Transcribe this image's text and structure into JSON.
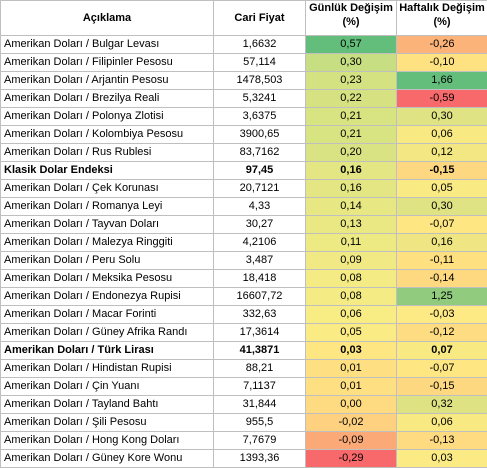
{
  "headers": {
    "description": "Açıklama",
    "price": "Cari Fiyat",
    "daily_line1": "Günlük Değişim",
    "daily_line2": "(%)",
    "weekly_line1": "Haftalık Değişim",
    "weekly_line2": "(%)"
  },
  "rows": [
    {
      "name": "Amerikan Doları / Bulgar Levası",
      "price": "1,6632",
      "daily": "0,57",
      "weekly": "-0,26",
      "daily_color": "#63be7b",
      "weekly_color": "#fcb37a",
      "bold": false
    },
    {
      "name": "Amerikan Doları / Filipinler Pesosu",
      "price": "57,114",
      "daily": "0,30",
      "weekly": "-0,10",
      "daily_color": "#c7de82",
      "weekly_color": "#fee282",
      "bold": false
    },
    {
      "name": "Amerikan Doları / Arjantin Pesosu",
      "price": "1478,503",
      "daily": "0,23",
      "weekly": "1,66",
      "daily_color": "#d4e282",
      "weekly_color": "#63be7b",
      "bold": false
    },
    {
      "name": "Amerikan Doları / Brezilya Reali",
      "price": "5,3241",
      "daily": "0,22",
      "weekly": "-0,59",
      "daily_color": "#d6e282",
      "weekly_color": "#f8696b",
      "bold": false
    },
    {
      "name": "Amerikan Doları / Polonya Zlotisi",
      "price": "3,6375",
      "daily": "0,21",
      "weekly": "0,30",
      "daily_color": "#d8e382",
      "weekly_color": "#e0e383",
      "bold": false
    },
    {
      "name": "Amerikan Doları / Kolombiya Pesosu",
      "price": "3900,65",
      "daily": "0,21",
      "weekly": "0,06",
      "daily_color": "#d8e382",
      "weekly_color": "#f9e983",
      "bold": false
    },
    {
      "name": "Amerikan Doları / Rus Rublesi",
      "price": "83,7162",
      "daily": "0,20",
      "weekly": "0,12",
      "daily_color": "#dae383",
      "weekly_color": "#f3e783",
      "bold": false
    },
    {
      "name": "Klasik Dolar Endeksi",
      "price": "97,45",
      "daily": "0,16",
      "weekly": "-0,15",
      "daily_color": "#e3e683",
      "weekly_color": "#fed880",
      "bold": true
    },
    {
      "name": "Amerikan Doları / Çek Korunası",
      "price": "20,7121",
      "daily": "0,16",
      "weekly": "0,05",
      "daily_color": "#e3e683",
      "weekly_color": "#faea84",
      "bold": false
    },
    {
      "name": "Amerikan Doları / Romanya Leyi",
      "price": "4,33",
      "daily": "0,14",
      "weekly": "0,30",
      "daily_color": "#e7e783",
      "weekly_color": "#e0e383",
      "bold": false
    },
    {
      "name": "Amerikan Doları /  Tayvan Doları",
      "price": "30,27",
      "daily": "0,13",
      "weekly": "-0,07",
      "daily_color": "#e9e883",
      "weekly_color": "#fee683",
      "bold": false
    },
    {
      "name": "Amerikan Doları / Malezya Ringgiti",
      "price": "4,2106",
      "daily": "0,11",
      "weekly": "0,16",
      "daily_color": "#ede983",
      "weekly_color": "#efe683",
      "bold": false
    },
    {
      "name": "Amerikan Doları / Peru Solu",
      "price": "3,487",
      "daily": "0,09",
      "weekly": "-0,11",
      "daily_color": "#f1ea84",
      "weekly_color": "#fee081",
      "bold": false
    },
    {
      "name": "Amerikan Doları / Meksika Pesosu",
      "price": "18,418",
      "daily": "0,08",
      "weekly": "-0,14",
      "daily_color": "#f4eb84",
      "weekly_color": "#fed980",
      "bold": false
    },
    {
      "name": "Amerikan Doları / Endonezya Rupisi",
      "price": "16607,72",
      "daily": "0,08",
      "weekly": "1,25",
      "daily_color": "#f4eb84",
      "weekly_color": "#90cb7e",
      "bold": false
    },
    {
      "name": "Amerikan Doları / Macar Forinti",
      "price": "332,63",
      "daily": "0,06",
      "weekly": "-0,03",
      "daily_color": "#f8ec84",
      "weekly_color": "#feea84",
      "bold": false
    },
    {
      "name": "Amerikan Doları / Güney Afrika Randı",
      "price": "17,3614",
      "daily": "0,05",
      "weekly": "-0,12",
      "daily_color": "#faeb84",
      "weekly_color": "#fedc81",
      "bold": false
    },
    {
      "name": "Amerikan Doları / Türk Lirası",
      "price": "41,3871",
      "daily": "0,03",
      "weekly": "0,07",
      "daily_color": "#fee683",
      "weekly_color": "#f8e983",
      "bold": true
    },
    {
      "name": "Amerikan Doları / Hindistan Rupisi",
      "price": "88,21",
      "daily": "0,01",
      "weekly": "-0,07",
      "daily_color": "#fee082",
      "weekly_color": "#fee683",
      "bold": false
    },
    {
      "name": "Amerikan Doları / Çin Yuanı",
      "price": "7,1137",
      "daily": "0,01",
      "weekly": "-0,15",
      "daily_color": "#fee082",
      "weekly_color": "#fed880",
      "bold": false
    },
    {
      "name": "Amerikan Doları / Tayland Bahtı",
      "price": "31,844",
      "daily": "0,00",
      "weekly": "0,32",
      "daily_color": "#fedb81",
      "weekly_color": "#dee283",
      "bold": false
    },
    {
      "name": "Amerikan Doları / Şili Pesosu",
      "price": "955,5",
      "daily": "-0,02",
      "weekly": "0,06",
      "daily_color": "#fdd17f",
      "weekly_color": "#f9e983",
      "bold": false
    },
    {
      "name": "Amerikan Doları / Hong Kong Doları",
      "price": "7,7679",
      "daily": "-0,09",
      "weekly": "-0,13",
      "daily_color": "#fbaa77",
      "weekly_color": "#fedb80",
      "bold": false
    },
    {
      "name": "Amerikan Doları / Güney Kore Wonu",
      "price": "1393,36",
      "daily": "-0,29",
      "weekly": "0,03",
      "daily_color": "#f8696b",
      "weekly_color": "#fcea84",
      "bold": false
    }
  ]
}
